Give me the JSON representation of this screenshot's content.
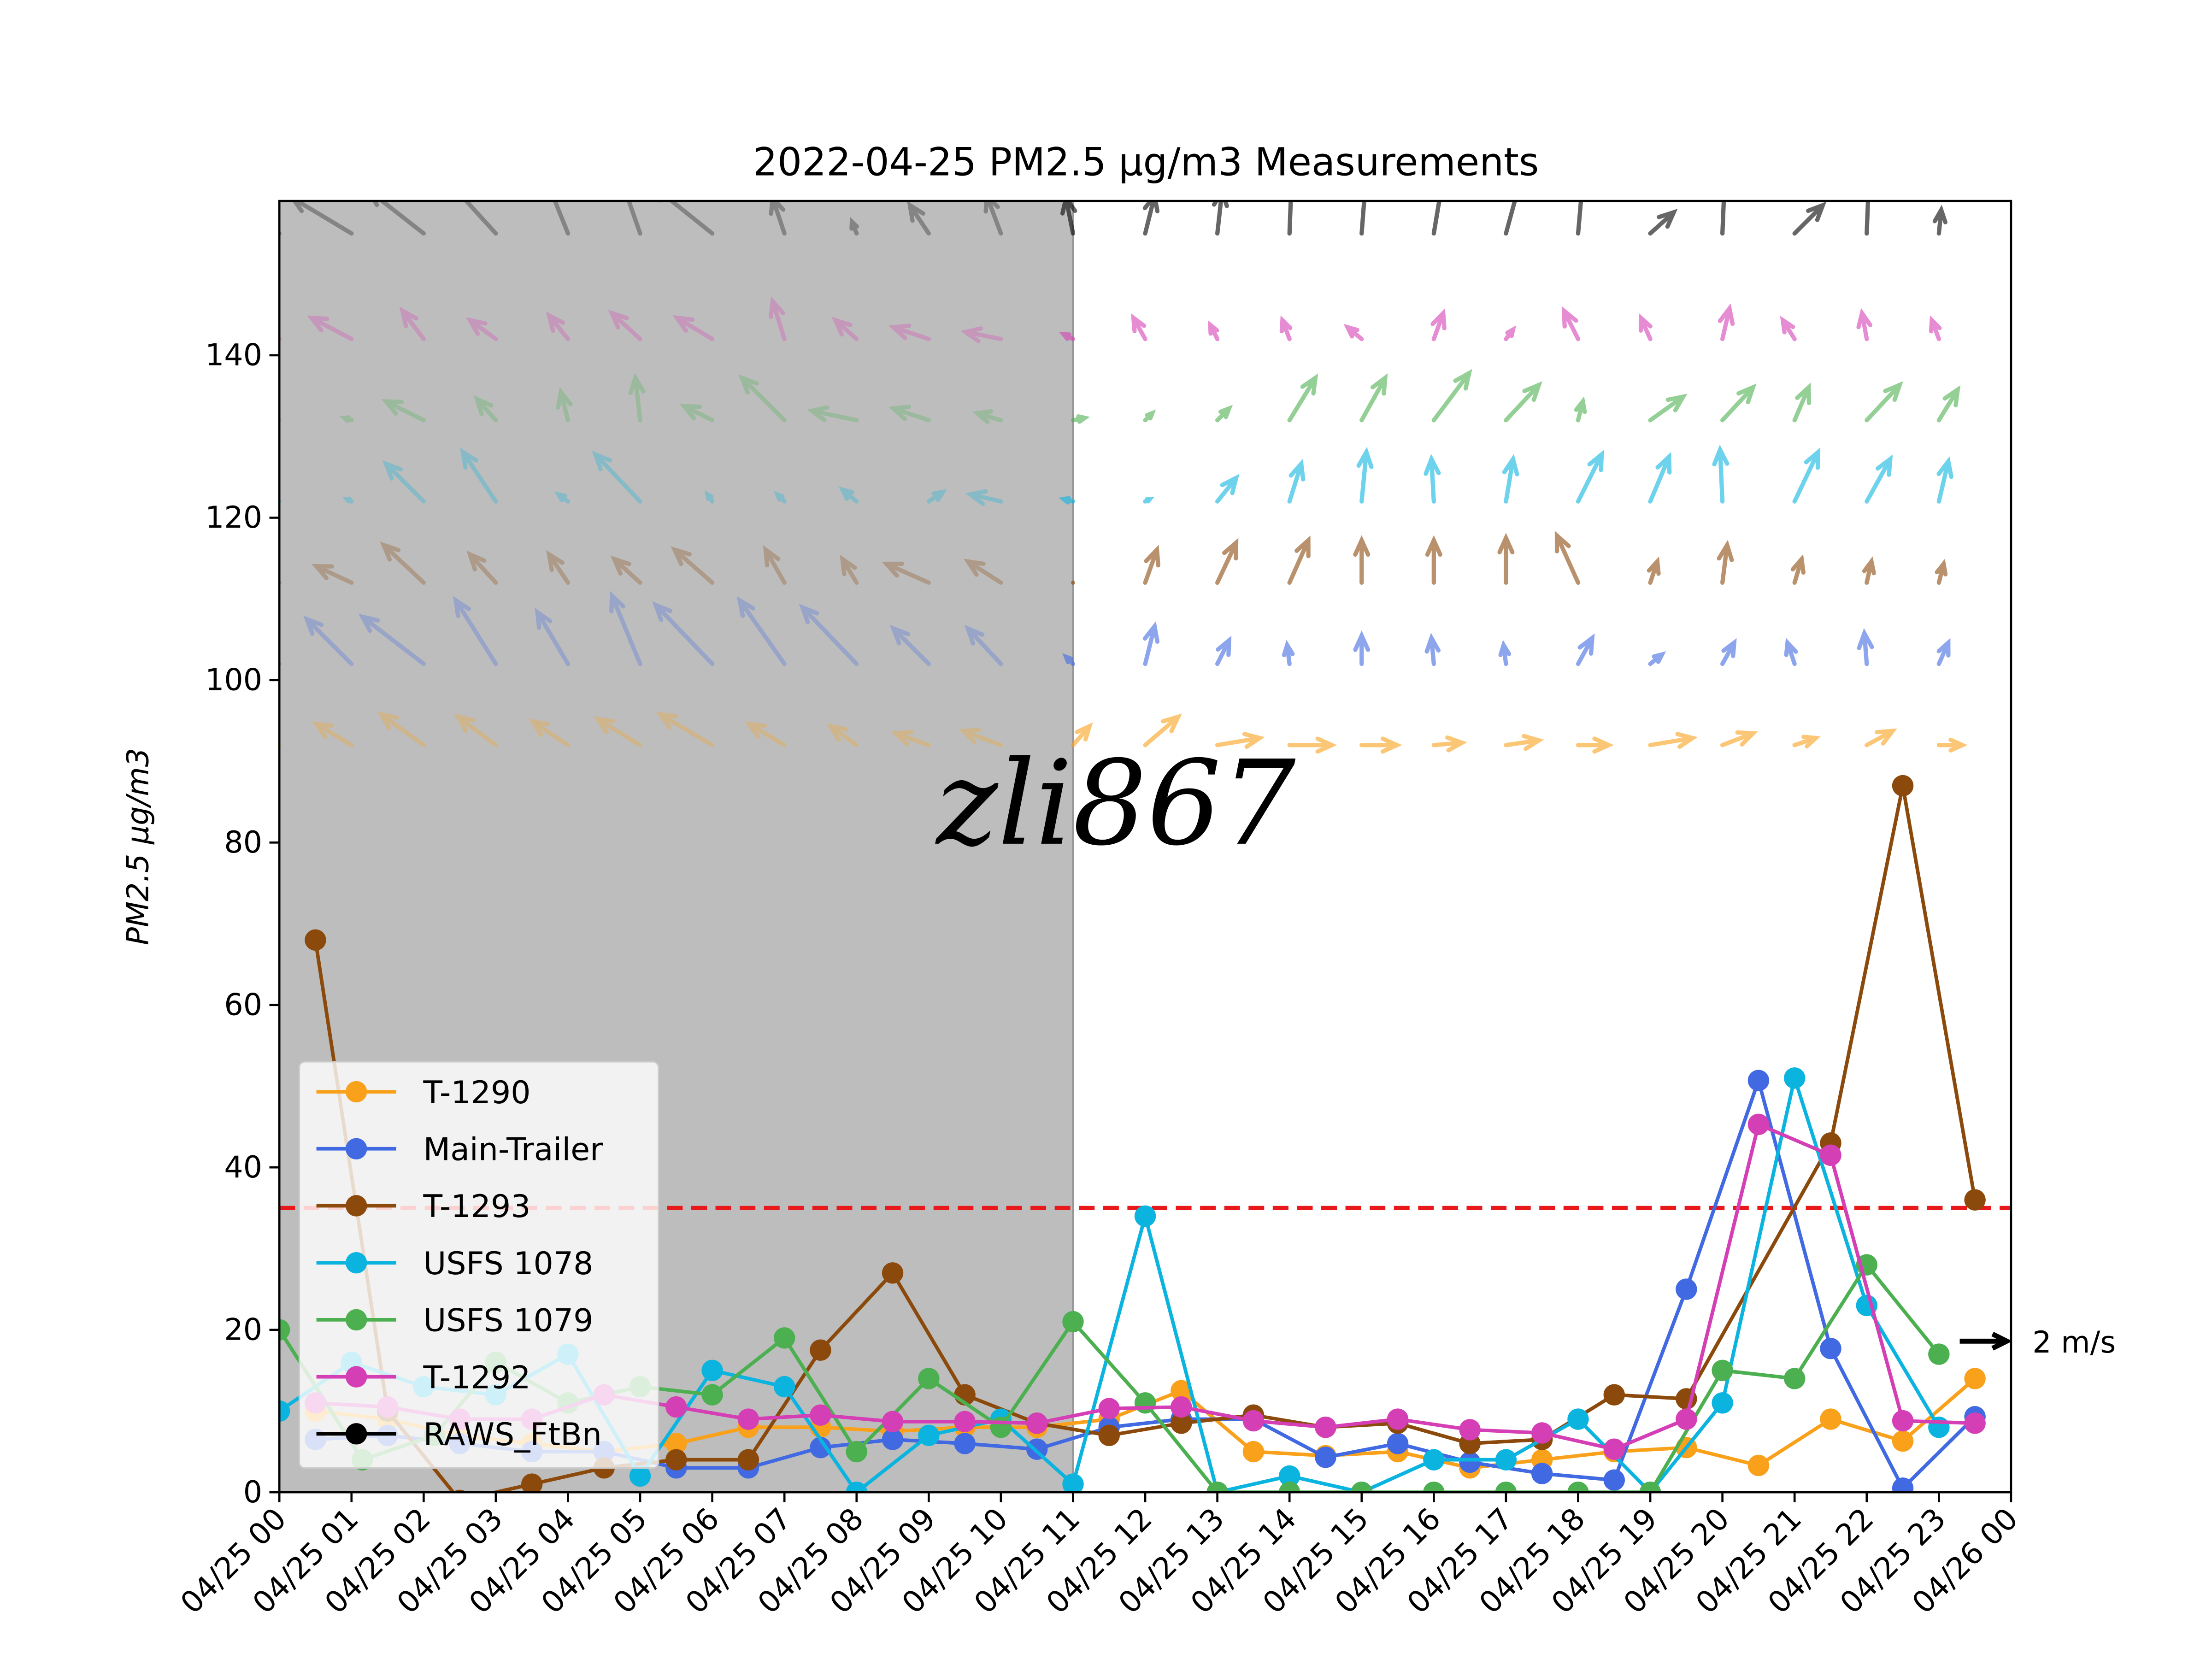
{
  "chart_data": {
    "type": "line",
    "title": "2022-04-25 PM2.5 μg/m3 Measurements",
    "y_label": "PM2.5 μg/m3",
    "watermark": "zli867",
    "xlim": [
      0,
      24
    ],
    "xticks": [
      {
        "value": 0,
        "label": "04/25 00"
      },
      {
        "value": 1,
        "label": "04/25 01"
      },
      {
        "value": 2,
        "label": "04/25 02"
      },
      {
        "value": 3,
        "label": "04/25 03"
      },
      {
        "value": 4,
        "label": "04/25 04"
      },
      {
        "value": 5,
        "label": "04/25 05"
      },
      {
        "value": 6,
        "label": "04/25 06"
      },
      {
        "value": 7,
        "label": "04/25 07"
      },
      {
        "value": 8,
        "label": "04/25 08"
      },
      {
        "value": 9,
        "label": "04/25 09"
      },
      {
        "value": 10,
        "label": "04/25 10"
      },
      {
        "value": 11,
        "label": "04/25 11"
      },
      {
        "value": 12,
        "label": "04/25 12"
      },
      {
        "value": 13,
        "label": "04/25 13"
      },
      {
        "value": 14,
        "label": "04/25 14"
      },
      {
        "value": 15,
        "label": "04/25 15"
      },
      {
        "value": 16,
        "label": "04/25 16"
      },
      {
        "value": 17,
        "label": "04/25 17"
      },
      {
        "value": 18,
        "label": "04/25 18"
      },
      {
        "value": 19,
        "label": "04/25 19"
      },
      {
        "value": 20,
        "label": "04/25 20"
      },
      {
        "value": 21,
        "label": "04/25 21"
      },
      {
        "value": 22,
        "label": "04/25 22"
      },
      {
        "value": 23,
        "label": "04/25 23"
      },
      {
        "value": 24,
        "label": "04/26 00"
      }
    ],
    "ylim": [
      0,
      159
    ],
    "yticks": [
      0,
      20,
      40,
      60,
      80,
      100,
      120,
      140
    ],
    "shade": {
      "x": [
        0,
        11
      ],
      "color": "#bdbdbd"
    },
    "threshold": {
      "value": 35,
      "color": "#e8191a"
    },
    "series": [
      {
        "name": "T-1290",
        "color": "#f9a11b",
        "x": [
          0.5,
          1.5,
          2.5,
          3.5,
          4.5,
          5.5,
          6.5,
          7.5,
          8.5,
          9.5,
          10.5,
          11.5,
          12.5,
          13.5,
          14.5,
          15.5,
          16.5,
          17.5,
          18.5,
          19.5,
          20.5,
          21.5,
          22.5,
          23.5
        ],
        "values": [
          10,
          9,
          7,
          6,
          5,
          6,
          8,
          8,
          7.5,
          8,
          8,
          9,
          12.5,
          5,
          4.5,
          5,
          3,
          4,
          5,
          5.5,
          3.3,
          9,
          6.3,
          14
        ]
      },
      {
        "name": "Main-Trailer",
        "color": "#4169e1",
        "x": [
          0.5,
          1.5,
          2.5,
          3.5,
          4.5,
          5.5,
          6.5,
          7.5,
          8.5,
          9.5,
          10.5,
          11.5,
          12.5,
          13.5,
          14.5,
          15.5,
          16.5,
          17.5,
          18.5,
          19.5,
          20.5,
          21.5,
          22.5,
          23.5
        ],
        "values": [
          6.5,
          7,
          6,
          5,
          5,
          3,
          3,
          5.5,
          6.5,
          6,
          5.3,
          8,
          9,
          9,
          4.3,
          6,
          3.7,
          2.3,
          1.5,
          25,
          50.7,
          17.7,
          0.5,
          9.3
        ]
      },
      {
        "name": "T-1293",
        "color": "#8b4a0c",
        "x": [
          0.5,
          1.5,
          2.5,
          3.5,
          4.5,
          5.5,
          6.5,
          7.5,
          8.5,
          9.5,
          10.5,
          11.5,
          12.5,
          13.5,
          14.5,
          15.5,
          16.5,
          17.5,
          18.5,
          19.5,
          21.5,
          22.5,
          23.5
        ],
        "values": [
          68,
          10,
          -1,
          1,
          3,
          4,
          4,
          17.5,
          27,
          12,
          8.5,
          7,
          8.5,
          9.5,
          8,
          8.5,
          6,
          6.5,
          12,
          11.5,
          43,
          87,
          36
        ]
      },
      {
        "name": "USFS 1078",
        "color": "#0bb4df",
        "x": [
          0,
          1,
          2,
          3,
          4,
          5,
          6,
          7,
          8,
          9,
          10,
          11,
          12,
          13,
          14,
          15,
          16,
          17,
          18,
          19,
          20,
          21,
          22,
          23
        ],
        "values": [
          10,
          16,
          13,
          12,
          17,
          2,
          15,
          13,
          0,
          7,
          9,
          1,
          34,
          0,
          2,
          0,
          4,
          4,
          9,
          0,
          11,
          51,
          23,
          8
        ]
      },
      {
        "name": "USFS 1079",
        "color": "#4caf50",
        "x": [
          0,
          1.15,
          2.15,
          3,
          4,
          5,
          6,
          7,
          8,
          9,
          10,
          11,
          12,
          13,
          14,
          15,
          16,
          17,
          18,
          19,
          20,
          21,
          22,
          23
        ],
        "values": [
          20,
          4,
          7,
          16,
          11,
          13,
          12,
          19,
          5,
          14,
          8,
          21,
          11,
          0,
          0,
          0,
          0,
          0,
          0,
          0,
          15,
          14,
          28,
          17
        ]
      },
      {
        "name": "T-1292",
        "color": "#d53fb5",
        "x": [
          0.5,
          1.5,
          2.5,
          3.5,
          4.5,
          5.5,
          6.5,
          7.5,
          8.5,
          9.5,
          10.5,
          11.5,
          12.5,
          13.5,
          14.5,
          15.5,
          16.5,
          17.5,
          18.5,
          19.5,
          20.5,
          21.5,
          22.5,
          23.5
        ],
        "values": [
          11,
          10.5,
          9,
          9,
          12,
          10.5,
          9,
          9.5,
          8.7,
          8.7,
          8.5,
          10.3,
          10.5,
          8.8,
          8,
          9,
          7.7,
          7.3,
          5.3,
          9,
          45.3,
          41.5,
          8.8,
          8.5
        ]
      }
    ],
    "wind": [
      {
        "name": "RAWS_FtBn",
        "color": "#000000",
        "u": [
          -2.7,
          -2.5,
          -2.3,
          -2,
          -1,
          -0.8,
          -2.5,
          -0.5,
          -0.2,
          -0.8,
          -0.6,
          -0.3,
          0.4,
          0.2,
          0.1,
          0.2,
          0.4,
          0.6,
          0.2,
          1.0,
          0.1,
          1.2,
          0.1,
          0.1
        ],
        "v": [
          1,
          1.5,
          1.8,
          2.2,
          2.5,
          2.3,
          2.0,
          1.5,
          0.5,
          1.2,
          1.6,
          1.5,
          1.6,
          1.8,
          2.6,
          2.6,
          2.4,
          2.2,
          2.3,
          0.9,
          2.4,
          1.2,
          2.6,
          1.0
        ]
      },
      {
        "name": "T-1292",
        "color": "#d53fb5",
        "u": [
          -1.8,
          -1.7,
          -0.9,
          -1.1,
          -0.8,
          -1.2,
          -1.5,
          -0.5,
          -0.9,
          -1.5,
          -1.5,
          -0.4,
          -0.5,
          -0.3,
          -0.3,
          -0.6,
          0.4,
          0.3,
          -0.6,
          -0.4,
          0.3,
          -0.5,
          -0.2,
          -0.3
        ],
        "v": [
          0.8,
          0.9,
          1.2,
          0.8,
          1.0,
          1.1,
          0.9,
          1.6,
          0.8,
          0.5,
          0.3,
          0.2,
          0.9,
          0.6,
          0.8,
          0.5,
          1.1,
          0.4,
          1.2,
          0.9,
          1.3,
          0.8,
          1.1,
          0.8
        ]
      },
      {
        "name": "USFS 1079",
        "color": "#4caf50",
        "u": [
          -0.4,
          -0.3,
          -1.6,
          -0.8,
          -0.3,
          -0.2,
          -1.2,
          -1.8,
          -1.9,
          -1.5,
          -1.0,
          0.5,
          0.3,
          0.5,
          1.1,
          1.0,
          1.5,
          1.4,
          0.2,
          1.4,
          1.3,
          0.6,
          1.4,
          0.8
        ],
        "v": [
          0.3,
          0.1,
          0.8,
          0.9,
          1.2,
          1.8,
          0.6,
          1.8,
          0.4,
          0.5,
          0.3,
          0.1,
          0.3,
          0.5,
          1.8,
          1.8,
          2.0,
          1.5,
          0.8,
          1.0,
          1.4,
          1.4,
          1.5,
          1.3
        ]
      },
      {
        "name": "USFS 1078",
        "color": "#0bb4df",
        "u": [
          -0.3,
          -0.2,
          -1.6,
          -1.4,
          -0.4,
          -1.9,
          -0.2,
          -0.3,
          -0.6,
          0.6,
          -1.3,
          -0.4,
          0.2,
          0.8,
          0.5,
          0.2,
          -0.1,
          0.3,
          1.0,
          0.8,
          -0.1,
          1.0,
          1.0,
          0.4
        ],
        "v": [
          0.2,
          0.1,
          1.6,
          2.1,
          0.3,
          2.0,
          0.3,
          0.3,
          0.5,
          0.4,
          0.3,
          0.1,
          0.1,
          1.0,
          1.6,
          2.1,
          1.8,
          1.8,
          2.0,
          1.9,
          2.2,
          2.1,
          1.8,
          1.7
        ]
      },
      {
        "name": "T-1293",
        "color": "#8b4a0c",
        "u": [
          -1.3,
          -1.5,
          -1.7,
          -1.1,
          -0.8,
          -1.1,
          -1.6,
          -0.8,
          -0.6,
          -1.8,
          -1.4,
          0,
          0.5,
          0.8,
          0.8,
          0,
          0,
          0,
          -0.9,
          0.3,
          0.2,
          0.3,
          0.2,
          0.2
        ],
        "v": [
          0.5,
          0.7,
          1.6,
          1.2,
          1.2,
          1.0,
          1.4,
          1.4,
          1.0,
          0.8,
          0.9,
          0,
          1.4,
          1.7,
          1.8,
          1.8,
          1.8,
          1.9,
          2.0,
          0.9,
          1.6,
          1.0,
          0.9,
          0.8
        ]
      },
      {
        "name": "Main-Trailer",
        "color": "#4169e1",
        "u": [
          -0.6,
          -1.9,
          -2.6,
          -1.7,
          -1.3,
          -1.2,
          -2.4,
          -1.9,
          -2.3,
          -1.5,
          -1.4,
          -0.3,
          0.4,
          0.5,
          -0.1,
          0.0,
          -0.1,
          -0.1,
          0.6,
          0.5,
          0.5,
          -0.3,
          -0.1,
          0.4
        ],
        "v": [
          0.5,
          1.9,
          2.0,
          2.7,
          2.2,
          2.9,
          2.5,
          2.7,
          2.4,
          1.5,
          1.5,
          0.3,
          1.6,
          1.0,
          0.8,
          1.2,
          1.1,
          0.8,
          1.1,
          0.4,
          0.9,
          0.9,
          1.3,
          0.9
        ]
      },
      {
        "name": "T-1290",
        "color": "#f9a11b",
        "u": [
          -1.0,
          -1.5,
          -1.8,
          -1.6,
          -1.5,
          -1.8,
          -2.2,
          -1.5,
          -1.1,
          -1.4,
          -1.6,
          0.7,
          1.4,
          1.8,
          1.8,
          1.5,
          1.2,
          1.4,
          1.3,
          1.8,
          1.3,
          0.9,
          1.1,
          1.0
        ],
        "v": [
          0.3,
          0.9,
          1.3,
          1.2,
          1.0,
          1.1,
          1.3,
          0.9,
          0.8,
          0.5,
          0.6,
          0.8,
          1.2,
          0.3,
          0.0,
          0.0,
          0.1,
          0.2,
          0.0,
          0.3,
          0.5,
          0.3,
          0.6,
          0.0
        ]
      }
    ],
    "quiver_key": {
      "value": 2,
      "label": "2 m/s"
    }
  }
}
